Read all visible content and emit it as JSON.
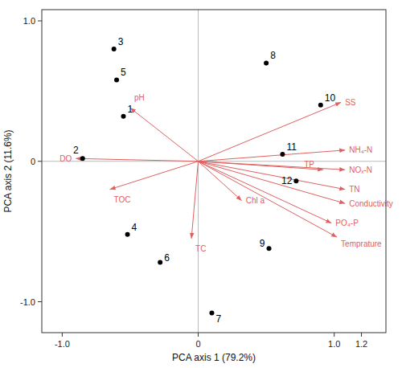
{
  "chart_data": {
    "type": "biplot",
    "xlabel": "PCA axis 1 (79.2%)",
    "ylabel": "PCA axis 2 (11.6%)",
    "xlim": [
      -1.15,
      1.38
    ],
    "ylim": [
      -1.22,
      1.08
    ],
    "xticks": [
      {
        "value": -1.0,
        "label": "-1.0"
      },
      0,
      {
        "value": 1.0,
        "label": "1.0"
      },
      1.2
    ],
    "yticks": [
      {
        "value": -1.0,
        "label": "-1.0"
      },
      0,
      {
        "value": 1.0,
        "label": "1.0"
      }
    ],
    "origin": [
      0,
      0
    ],
    "series": [
      {
        "type": "scatter",
        "marker": "circle",
        "color": "black",
        "categories": [
          "1",
          "2",
          "3",
          "4",
          "5",
          "6",
          "7",
          "8",
          "9",
          "10",
          "11",
          "12"
        ],
        "x": [
          -0.55,
          -0.85,
          -0.62,
          -0.52,
          -0.6,
          -0.28,
          0.1,
          0.5,
          0.52,
          0.9,
          0.62,
          0.72
        ],
        "values": [
          0.32,
          0.02,
          0.8,
          -0.52,
          0.58,
          -0.72,
          -1.08,
          0.7,
          -0.62,
          0.4,
          0.05,
          -0.14
        ]
      },
      {
        "type": "arrow",
        "color": "#e06060",
        "categories": [
          "pH",
          "DO",
          "TOC",
          "TC",
          "Chl a",
          "SS",
          "NH₄-N",
          "TP",
          "NOₓ-N",
          "TN",
          "Conductivity",
          "PO₄-P",
          "Temprature"
        ],
        "x": [
          -0.5,
          -0.9,
          -0.65,
          -0.05,
          0.32,
          1.05,
          1.08,
          0.92,
          1.08,
          1.08,
          1.08,
          0.98,
          1.02
        ],
        "values": [
          0.38,
          0.02,
          -0.2,
          -0.55,
          -0.28,
          0.42,
          0.08,
          -0.06,
          -0.06,
          -0.2,
          -0.3,
          -0.44,
          -0.54
        ]
      }
    ]
  }
}
